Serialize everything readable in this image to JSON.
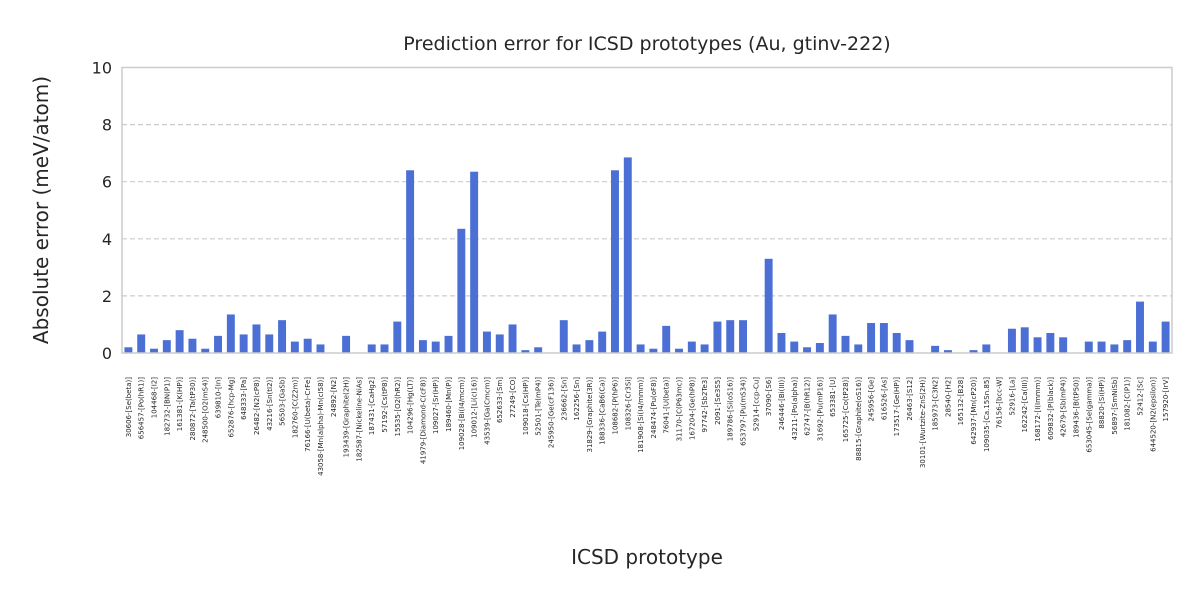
{
  "chart_data": {
    "type": "bar",
    "title": "Prediction error for ICSD prototypes (Au, gtinv-222)",
    "xlabel": "ICSD prototype",
    "ylabel": "Absolute error (meV/atom)",
    "ylim": [
      0,
      10
    ],
    "yticks": [
      0,
      2,
      4,
      6,
      8,
      10
    ],
    "grid": "y-dashed",
    "bar_color": "#4c6fd6",
    "grid_color": "#cccccc",
    "categories": [
      "30606-[Se(beta)]",
      "656457-[Po(hR1)]",
      "104468-[I2]",
      "182732-[BN(P1)]",
      "161381-[K(HP)]",
      "280872-[Ta(tP30)]",
      "248500-[O2(mS4)]",
      "639810-[In]",
      "652876-[hcp-Mg]",
      "648333-[Pa]",
      "26482-[N2(cP8)]",
      "43216-[Sn(tI2)]",
      "56503-[GaSb]",
      "182760-[C(Z2m)]",
      "76166-[U(beta)-CrFe]",
      "43058-[Mn(alpha)-Mn(cI58)]",
      "24892-[N2]",
      "193439-[Graphite(2H)]",
      "182587-[Nickeline-NiAs]",
      "187431-[CaHg2]",
      "57192-[Cs(tP8)]",
      "15535-[O2(hR2)]",
      "104296-[Hg(LT)]",
      "41979-[Diamond-C(cF8)]",
      "109027-[Sr(HP)]",
      "189460-[Mn(P)]",
      "109028-[Bi(I4/mcm)]",
      "109012-[Li(cI16)]",
      "43539-[Ga(Cmcm)]",
      "652633-[Sm]",
      "27249-[CO]",
      "109018-[Cs(HP)]",
      "52501-[Te(mP4)]",
      "245950-[Ge(cF136)]",
      "236662-[Sn]",
      "162256-[Sn]",
      "31829-[Graphite(3R)]",
      "188336-[CaB6(Ca)]",
      "108682-[P(hP6)]",
      "108326-[Cr3Si]",
      "181908-[Si(I4/mmm)]",
      "248474-[Pu(oF8)]",
      "76041-[U(beta)]",
      "31170-[C(P63mc)]",
      "167204-[Ge(hP8)]",
      "97742-[Sb2Te3]",
      "2091-[Se3S5]",
      "189786-[Si(oS16)]",
      "653797-[Pu(mS34)]",
      "52914-[ccp-Cu]",
      "37090-[S6]",
      "246446-[Bi(III)]",
      "43211-[Po(alpha)]",
      "62747-[B(hR12)]",
      "31692-[Pu(mP16)]",
      "653381-[U]",
      "165725-[Co(tP28)]",
      "88815-[Graphite(oS16)]",
      "245956-[Ge]",
      "616526-[As]",
      "173517-[Ge(HP)]",
      "26463-[S12]",
      "30101-[Wurtzite-ZnS(2H)]",
      "185973-[C3N2]",
      "28540-[H2]",
      "165132-[B28]",
      "642937-[Mn(cP20)]",
      "109035-[Ca.15Sn.85]",
      "76156-[bcc-W]",
      "52916-[La]",
      "162242-[Ca(III)]",
      "168172-[I(Immm)]",
      "609832-[P(black)]",
      "42679-[Sb(mP4)]",
      "189436-[B(tP50)]",
      "653045-[Se(gamma)]",
      "88820-[Si(HP)]",
      "56897-[SmNiSb]",
      "181082-[C(P1)]",
      "52412-[Sc]",
      "644520-[N2(epsilon)]",
      "157920-[IrV]"
    ],
    "values": [
      0.2,
      0.65,
      0.15,
      0.45,
      0.8,
      0.5,
      0.15,
      0.6,
      1.35,
      0.65,
      1.0,
      0.65,
      1.15,
      0.4,
      0.5,
      0.3,
      0.0,
      0.6,
      0.0,
      0.3,
      0.3,
      1.1,
      6.4,
      0.45,
      0.4,
      0.6,
      4.35,
      6.35,
      0.75,
      0.65,
      1.0,
      0.1,
      0.2,
      0.0,
      1.15,
      0.3,
      0.45,
      0.75,
      6.4,
      6.85,
      0.3,
      0.15,
      0.95,
      0.15,
      0.4,
      0.3,
      1.1,
      1.15,
      1.15,
      0.0,
      3.3,
      0.7,
      0.4,
      0.2,
      0.35,
      1.35,
      0.6,
      0.3,
      1.05,
      1.05,
      0.7,
      0.45,
      0.0,
      0.25,
      0.1,
      0.0,
      0.1,
      0.3,
      0.0,
      0.85,
      0.9,
      0.55,
      0.7,
      0.55,
      0.0,
      0.4,
      0.4,
      0.3,
      0.45,
      1.8,
      0.4,
      1.1
    ]
  }
}
